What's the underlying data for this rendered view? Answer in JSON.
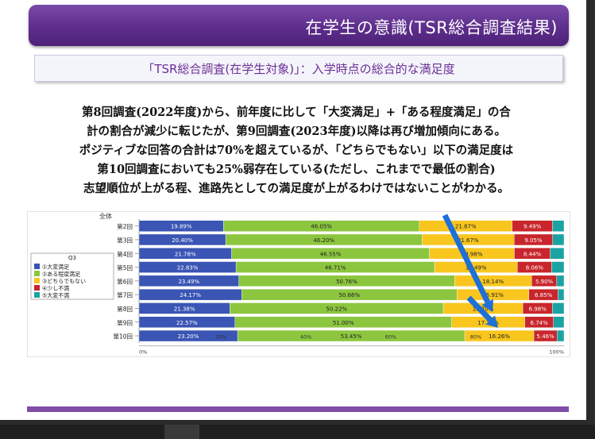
{
  "slide": {
    "title": "在学生の意識(TSR総合調査結果)",
    "subtitle": "「TSR総合調査(在学生対象)」：入学時点の総合的な満足度",
    "paragraph": [
      "第8回調査(2022年度)から、前年度に比して「大変満足」+「ある程度満足」の合",
      "計の割合が減少に転じたが、第9回調査(2023年度)以降は再び増加傾向にある。",
      "ポジティブな回答の合計は70%を超えているが、「どちらでもない」以下の満足度は",
      "第10回調査においても25%弱存在している(ただし、これまでで最低の割合)",
      "志望順位が上がる程、進路先としての満足度が上がるわけではないことがわかる。"
    ]
  },
  "chart_data": {
    "type": "bar",
    "orientation": "horizontal-stacked-100",
    "group_label": "全体",
    "axis_group_label": "年次",
    "categories": [
      "第2回",
      "第3回",
      "第4回",
      "第5回",
      "第6回",
      "第7回",
      "第8回",
      "第9回",
      "第10回"
    ],
    "legend_title": "Q3",
    "legend_placement": "left",
    "x_ticks": [
      "0%",
      "20%",
      "40%",
      "60%",
      "80%",
      "100%"
    ],
    "inner_tick_labels": [
      "20%",
      "40%",
      "60%",
      "80%"
    ],
    "xlim": [
      0,
      100
    ],
    "series": [
      {
        "name": "①大変満足",
        "color": "#3a55b4",
        "values": [
          19.89,
          20.4,
          21.78,
          22.83,
          23.49,
          24.17,
          21.38,
          22.57,
          23.2
        ],
        "labels": [
          "19.89%",
          "20.40%",
          "21.78%",
          "22.83%",
          "23.49%",
          "24.17%",
          "21.38%",
          "22.57%",
          "23.20%"
        ]
      },
      {
        "name": "②ある程度満足",
        "color": "#8cc63f",
        "values": [
          46.05,
          46.2,
          46.55,
          46.71,
          50.76,
          50.66,
          50.22,
          51.0,
          53.45
        ],
        "labels": [
          "46.05%",
          "46.20%",
          "46.55%",
          "46.71%",
          "50.76%",
          "50.66%",
          "50.22%",
          "51.00%",
          "53.45%"
        ]
      },
      {
        "name": "③どちらでもない",
        "color": "#f8c61e",
        "values": [
          21.87,
          21.67,
          19.98,
          19.49,
          18.14,
          16.91,
          18.7,
          17.2,
          16.26
        ],
        "labels": [
          "21.87%",
          "21.67%",
          "19.98%",
          "19.49%",
          "18.14%",
          "16.91%",
          "18.70%",
          "17.20%",
          "16.26%"
        ]
      },
      {
        "name": "④少し不満",
        "color": "#c8262c",
        "values": [
          9.49,
          9.05,
          8.44,
          8.06,
          5.9,
          6.85,
          6.98,
          6.74,
          5.46
        ],
        "labels": [
          "9.49%",
          "9.05%",
          "8.44%",
          "8.06%",
          "5.90%",
          "6.85%",
          "6.98%",
          "6.74%",
          "5.46%"
        ]
      },
      {
        "name": "⑤大変不満",
        "color": "#1aa3a3",
        "values": [
          2.7,
          2.68,
          3.25,
          2.91,
          1.71,
          1.41,
          2.72,
          2.49,
          1.63
        ]
      }
    ],
    "annotation_arrows": [
      {
        "color": "#1e6fd6"
      },
      {
        "color": "#1e6fd6"
      }
    ]
  },
  "colors": {
    "header": "#5b2c8a",
    "accent_text": "#6b2f95",
    "footer_line": "#7e4ea8"
  }
}
